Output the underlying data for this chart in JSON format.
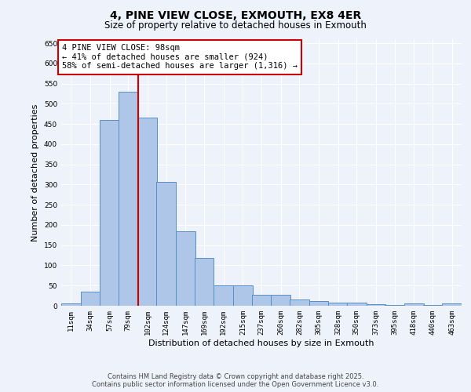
{
  "title": "4, PINE VIEW CLOSE, EXMOUTH, EX8 4ER",
  "subtitle": "Size of property relative to detached houses in Exmouth",
  "xlabel": "Distribution of detached houses by size in Exmouth",
  "ylabel": "Number of detached properties",
  "categories": [
    "11sqm",
    "34sqm",
    "57sqm",
    "79sqm",
    "102sqm",
    "124sqm",
    "147sqm",
    "169sqm",
    "192sqm",
    "215sqm",
    "237sqm",
    "260sqm",
    "282sqm",
    "305sqm",
    "328sqm",
    "350sqm",
    "373sqm",
    "395sqm",
    "418sqm",
    "440sqm",
    "463sqm"
  ],
  "bin_edges": [
    11,
    34,
    57,
    79,
    102,
    124,
    147,
    169,
    192,
    215,
    237,
    260,
    282,
    305,
    328,
    350,
    373,
    395,
    418,
    440,
    463
  ],
  "values": [
    5,
    35,
    460,
    530,
    465,
    307,
    184,
    118,
    50,
    50,
    27,
    27,
    15,
    12,
    8,
    8,
    4,
    1,
    5,
    1,
    5
  ],
  "bar_color": "#aec6e8",
  "bar_edge_color": "#5a8fc2",
  "vline_x": 102,
  "vline_color": "#cc0000",
  "annotation_text": "4 PINE VIEW CLOSE: 98sqm\n← 41% of detached houses are smaller (924)\n58% of semi-detached houses are larger (1,316) →",
  "annotation_box_color": "#ffffff",
  "annotation_box_edge_color": "#cc0000",
  "ylim": [
    0,
    660
  ],
  "yticks": [
    0,
    50,
    100,
    150,
    200,
    250,
    300,
    350,
    400,
    450,
    500,
    550,
    600,
    650
  ],
  "background_color": "#eef2fb",
  "grid_color": "#ffffff",
  "footer_line1": "Contains HM Land Registry data © Crown copyright and database right 2025.",
  "footer_line2": "Contains public sector information licensed under the Open Government Licence v3.0.",
  "title_fontsize": 10,
  "subtitle_fontsize": 8.5,
  "xlabel_fontsize": 8,
  "ylabel_fontsize": 8,
  "tick_fontsize": 6.5,
  "annotation_fontsize": 7.5
}
